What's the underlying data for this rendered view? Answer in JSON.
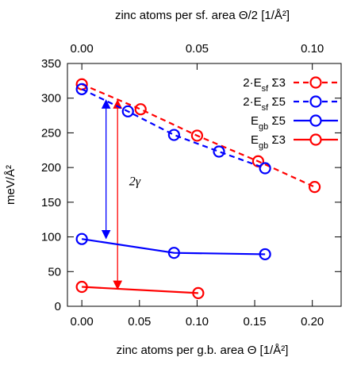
{
  "chart_data": {
    "type": "line",
    "x_bottom": {
      "label": "zinc atoms per g.b. area Θ [1/Å²]",
      "range": [
        -0.0125,
        0.225
      ],
      "ticks": [
        "0.00",
        "0.05",
        "0.10",
        "0.15",
        "0.20"
      ],
      "tick_values": [
        0,
        0.05,
        0.1,
        0.15,
        0.2
      ]
    },
    "x_top": {
      "label": "zinc atoms per sf. area Θ/2 [1/Å²]",
      "ticks": [
        "0.00",
        "0.05",
        "0.10"
      ],
      "tick_values": [
        0,
        0.05,
        0.1
      ]
    },
    "y": {
      "label": "meV/Å²",
      "range": [
        0,
        350
      ],
      "ticks": [
        "0",
        "50",
        "100",
        "150",
        "200",
        "250",
        "300",
        "350"
      ],
      "tick_values": [
        0,
        50,
        100,
        150,
        200,
        250,
        300,
        350
      ]
    },
    "series": [
      {
        "name": "2·Esf Σ3",
        "legend": {
          "pre": "2·E",
          "sub": "sf",
          "post": " Σ3"
        },
        "color": "#ff0000",
        "dashed": true,
        "x": [
          0.0,
          0.051,
          0.1,
          0.153,
          0.202
        ],
        "y": [
          320,
          284,
          246,
          209,
          172
        ]
      },
      {
        "name": "2·Esf Σ5",
        "legend": {
          "pre": "2·E",
          "sub": "sf",
          "post": " Σ5"
        },
        "color": "#0000ff",
        "dashed": true,
        "x": [
          0.0,
          0.04,
          0.08,
          0.119,
          0.159
        ],
        "y": [
          313,
          281,
          247,
          223,
          199
        ]
      },
      {
        "name": "Egb Σ5",
        "legend": {
          "pre": "E",
          "sub": "gb",
          "post": " Σ5"
        },
        "color": "#0000ff",
        "dashed": false,
        "x": [
          0.0,
          0.08,
          0.159
        ],
        "y": [
          97,
          77,
          75
        ]
      },
      {
        "name": "Egb Σ3",
        "legend": {
          "pre": "E",
          "sub": "gb",
          "post": " Σ3"
        },
        "color": "#ff0000",
        "dashed": false,
        "x": [
          0.0,
          0.101
        ],
        "y": [
          28,
          19
        ]
      }
    ],
    "annotations": [
      {
        "text": "2γ",
        "arrows": [
          {
            "color": "#0000ff",
            "x": 0.021,
            "y1": 98,
            "y2": 297
          },
          {
            "color": "#ff0000",
            "x": 0.031,
            "y1": 25,
            "y2": 297
          }
        ]
      }
    ],
    "grid": false,
    "legend_position": "top-right"
  }
}
